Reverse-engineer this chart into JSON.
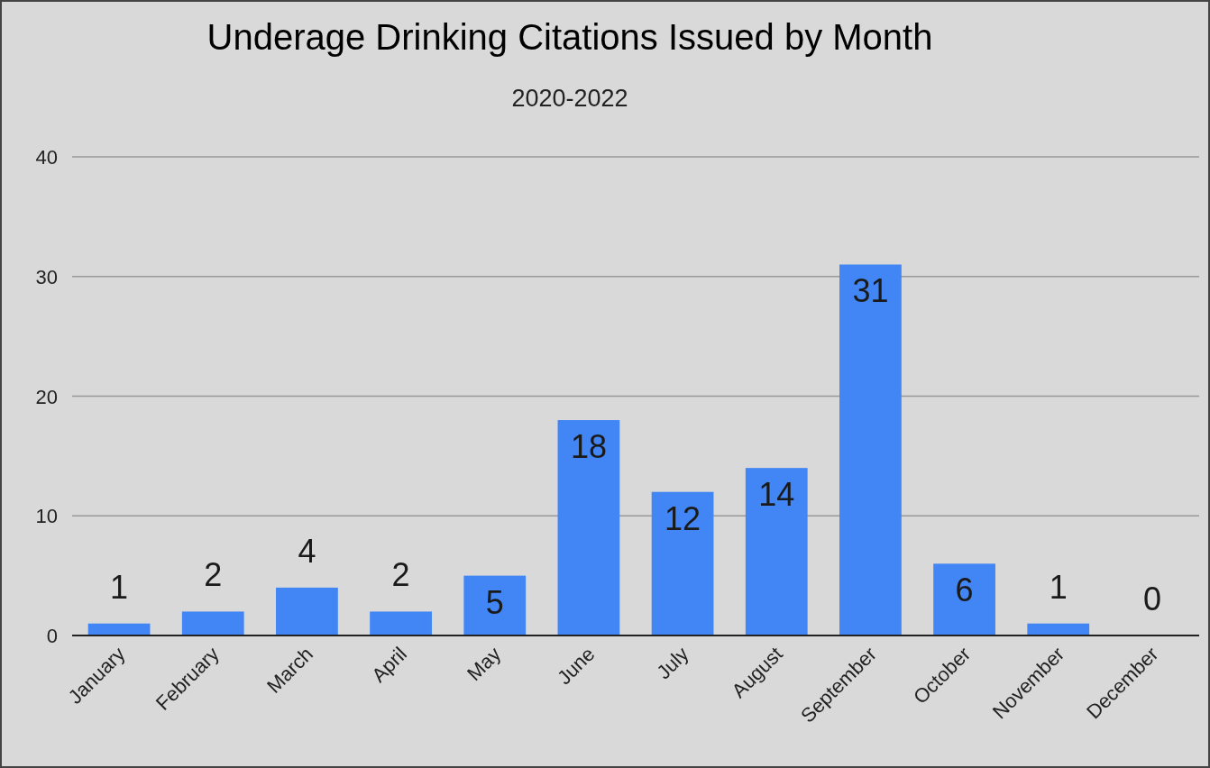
{
  "chart_data": {
    "type": "bar",
    "title": "Underage Drinking Citations Issued by Month",
    "subtitle": "2020-2022",
    "categories": [
      "January",
      "February",
      "March",
      "April",
      "May",
      "June",
      "July",
      "August",
      "September",
      "October",
      "November",
      "December"
    ],
    "values": [
      1,
      2,
      4,
      2,
      5,
      18,
      12,
      14,
      31,
      6,
      1,
      0
    ],
    "color": "#4285f4",
    "ylim": [
      0,
      40
    ],
    "yticks": [
      0,
      10,
      20,
      30,
      40
    ],
    "grid": "y",
    "data_labels": true
  }
}
